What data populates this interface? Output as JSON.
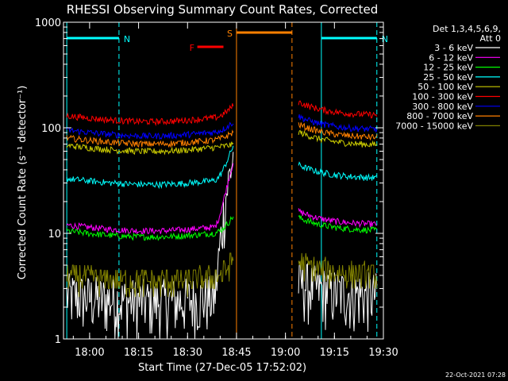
{
  "chart_data": {
    "type": "line",
    "title": "RHESSI Observing Summary Count Rates, Corrected",
    "xlabel": "Start Time (27-Dec-05 17:52:02)",
    "ylabel": "Corrected Count Rate (s⁻¹ detector⁻¹)",
    "y_scale": "log",
    "ylim": [
      1,
      1000
    ],
    "xlim": [
      "17:52",
      "19:30"
    ],
    "x_ticks": [
      "18:00",
      "18:15",
      "18:30",
      "18:45",
      "19:00",
      "19:15",
      "19:30"
    ],
    "y_ticks": [
      "1",
      "10",
      "100",
      "1000"
    ],
    "footer_date": "22-Oct-2021 07:28",
    "legend": {
      "header1": "Det 1,3,4,5,6,9,",
      "header2": "Att 0",
      "position": "right"
    },
    "annotations": [
      {
        "label": "N",
        "color": "#00ffff",
        "x_start": "17:53",
        "x_end": "18:09"
      },
      {
        "label": "N",
        "color": "#00ffff",
        "x_start": "19:11",
        "x_end": "19:28"
      },
      {
        "label": "F",
        "color": "#ff0000",
        "x_start": "18:33",
        "x_end": "18:41"
      },
      {
        "label": "S",
        "color": "#ff8000",
        "x_start": "18:45",
        "x_end": "19:02"
      }
    ],
    "gap": [
      "18:45",
      "19:03"
    ],
    "series": [
      {
        "name": "3 - 6 keV",
        "color": "#ffffff",
        "kind": "lowrate",
        "base": 2,
        "rise": 55
      },
      {
        "name": "6 - 12 keV",
        "color": "#ff00ff",
        "base": 12,
        "rise": 60
      },
      {
        "name": "12 - 25 keV",
        "color": "#00ff00",
        "base": 10.5,
        "rise": 16
      },
      {
        "name": "25 - 50 keV",
        "color": "#00ffff",
        "base": 33,
        "rise": 80
      },
      {
        "name": "50 - 100 keV",
        "color": "#cccc00",
        "base": 68,
        "rise": 70
      },
      {
        "name": "100 - 300 keV",
        "color": "#ff0000",
        "base": 130,
        "rise": 175
      },
      {
        "name": "300 - 800 keV",
        "color": "#0000ff",
        "base": 95,
        "rise": 120
      },
      {
        "name": "800 - 7000 keV",
        "color": "#ff8000",
        "base": 80,
        "rise": 95
      },
      {
        "name": "7000 - 15000 keV",
        "color": "#808000",
        "kind": "stepped",
        "base": 4,
        "rise": 6
      }
    ]
  }
}
